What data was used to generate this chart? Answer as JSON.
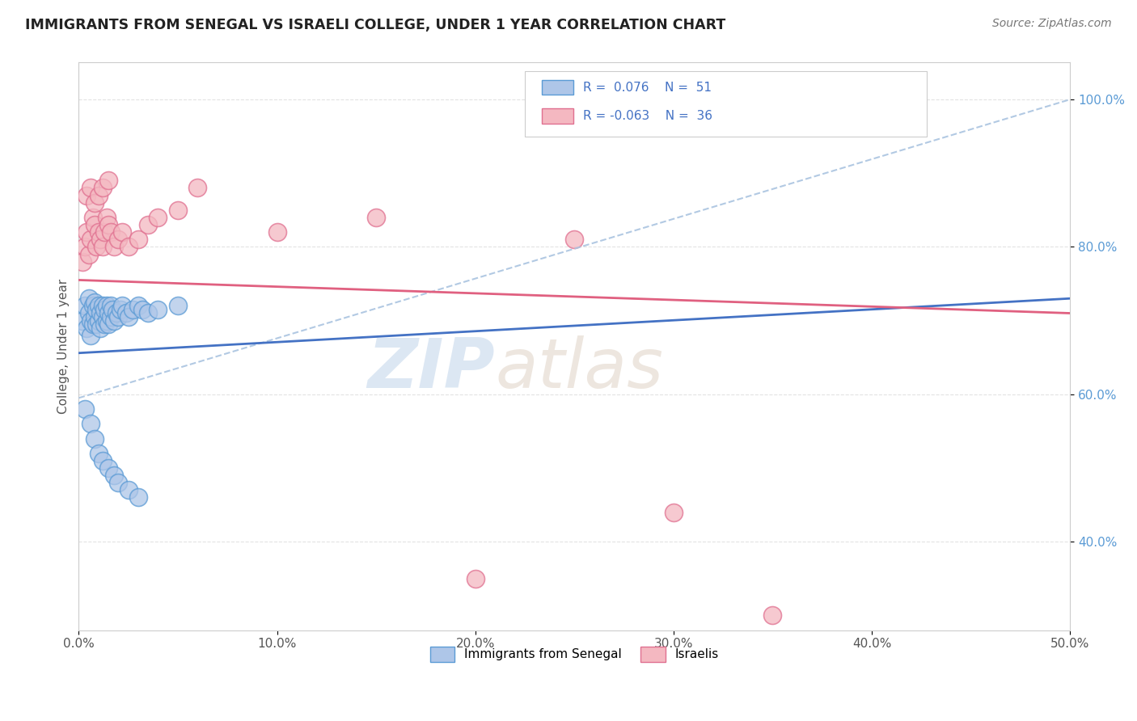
{
  "title": "IMMIGRANTS FROM SENEGAL VS ISRAELI COLLEGE, UNDER 1 YEAR CORRELATION CHART",
  "source": "Source: ZipAtlas.com",
  "ylabel": "College, Under 1 year",
  "xlabel_legend1": "Immigrants from Senegal",
  "xlabel_legend2": "Israelis",
  "xlim": [
    0.0,
    0.5
  ],
  "ylim": [
    0.28,
    1.05
  ],
  "x_ticks": [
    0.0,
    0.1,
    0.2,
    0.3,
    0.4,
    0.5
  ],
  "x_tick_labels": [
    "0.0%",
    "10.0%",
    "20.0%",
    "30.0%",
    "40.0%",
    "50.0%"
  ],
  "y_ticks": [
    0.4,
    0.6,
    0.8,
    1.0
  ],
  "y_tick_labels": [
    "40.0%",
    "60.0%",
    "80.0%",
    "100.0%"
  ],
  "blue_color": "#aec6e8",
  "blue_edge": "#5b9bd5",
  "pink_color": "#f4b8c1",
  "pink_edge": "#e07090",
  "trend_blue": "#4472c4",
  "trend_pink": "#e06080",
  "dashed_color": "#aac4e0",
  "watermark_zip": "ZIP",
  "watermark_atlas": "atlas",
  "background_color": "#ffffff",
  "grid_color": "#e0e0e0",
  "blue_scatter_x": [
    0.002,
    0.003,
    0.004,
    0.005,
    0.005,
    0.006,
    0.006,
    0.007,
    0.007,
    0.008,
    0.008,
    0.009,
    0.009,
    0.01,
    0.01,
    0.011,
    0.011,
    0.012,
    0.012,
    0.013,
    0.013,
    0.014,
    0.014,
    0.015,
    0.015,
    0.016,
    0.016,
    0.017,
    0.018,
    0.019,
    0.02,
    0.021,
    0.022,
    0.024,
    0.025,
    0.027,
    0.03,
    0.032,
    0.035,
    0.04,
    0.05,
    0.003,
    0.006,
    0.008,
    0.01,
    0.012,
    0.015,
    0.018,
    0.02,
    0.025,
    0.03
  ],
  "blue_scatter_y": [
    0.7,
    0.72,
    0.69,
    0.71,
    0.73,
    0.68,
    0.7,
    0.72,
    0.695,
    0.705,
    0.725,
    0.715,
    0.695,
    0.7,
    0.72,
    0.71,
    0.69,
    0.705,
    0.72,
    0.695,
    0.715,
    0.7,
    0.72,
    0.71,
    0.695,
    0.705,
    0.72,
    0.715,
    0.7,
    0.71,
    0.705,
    0.715,
    0.72,
    0.71,
    0.705,
    0.715,
    0.72,
    0.715,
    0.71,
    0.715,
    0.72,
    0.58,
    0.56,
    0.54,
    0.52,
    0.51,
    0.5,
    0.49,
    0.48,
    0.47,
    0.46
  ],
  "pink_scatter_x": [
    0.002,
    0.003,
    0.004,
    0.005,
    0.006,
    0.007,
    0.008,
    0.009,
    0.01,
    0.011,
    0.012,
    0.013,
    0.014,
    0.015,
    0.016,
    0.018,
    0.02,
    0.022,
    0.025,
    0.03,
    0.035,
    0.04,
    0.05,
    0.06,
    0.004,
    0.006,
    0.008,
    0.01,
    0.012,
    0.015,
    0.2,
    0.3,
    0.35,
    0.1,
    0.15,
    0.25
  ],
  "pink_scatter_y": [
    0.78,
    0.8,
    0.82,
    0.79,
    0.81,
    0.84,
    0.83,
    0.8,
    0.82,
    0.81,
    0.8,
    0.82,
    0.84,
    0.83,
    0.82,
    0.8,
    0.81,
    0.82,
    0.8,
    0.81,
    0.83,
    0.84,
    0.85,
    0.88,
    0.87,
    0.88,
    0.86,
    0.87,
    0.88,
    0.89,
    0.35,
    0.44,
    0.3,
    0.82,
    0.84,
    0.81
  ],
  "blue_trend_x0": 0.0,
  "blue_trend_y0": 0.656,
  "blue_trend_x1": 0.5,
  "blue_trend_y1": 0.73,
  "pink_trend_x0": 0.0,
  "pink_trend_y0": 0.755,
  "pink_trend_x1": 0.5,
  "pink_trend_y1": 0.71,
  "dashed_trend_x0": 0.0,
  "dashed_trend_y0": 0.595,
  "dashed_trend_x1": 0.5,
  "dashed_trend_y1": 1.0
}
